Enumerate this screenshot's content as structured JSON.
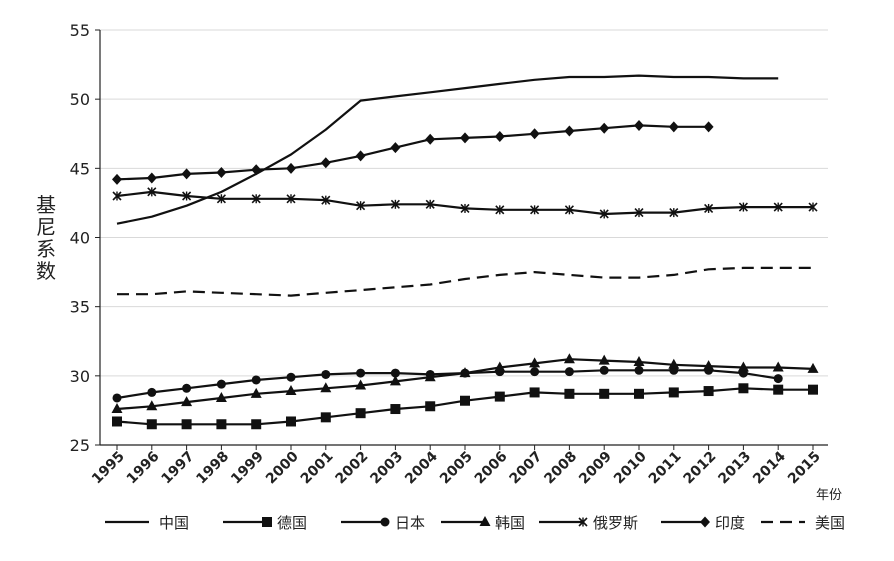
{
  "chart_data": {
    "type": "line",
    "ylabel": "基尼系数",
    "xunit": "年份",
    "ylim": [
      25,
      55
    ],
    "yticks": [
      25,
      30,
      35,
      40,
      45,
      50,
      55
    ],
    "x": [
      "1995",
      "1996",
      "1997",
      "1998",
      "1999",
      "2000",
      "2001",
      "2002",
      "2003",
      "2004",
      "2005",
      "2006",
      "2007",
      "2008",
      "2009",
      "2010",
      "2011",
      "2012",
      "2013",
      "2014",
      "2015"
    ],
    "grid": true,
    "legend_position": "bottom",
    "series": [
      {
        "name": "中国",
        "marker": "none",
        "dash": "solid",
        "color": "#111111",
        "values": [
          41.0,
          41.5,
          42.3,
          43.3,
          44.6,
          46.0,
          47.8,
          49.9,
          50.2,
          50.5,
          50.8,
          51.1,
          51.4,
          51.6,
          51.6,
          51.7,
          51.6,
          51.6,
          51.5,
          51.5,
          null
        ]
      },
      {
        "name": "德国",
        "marker": "square",
        "dash": "solid",
        "color": "#111111",
        "values": [
          26.7,
          26.5,
          26.5,
          26.5,
          26.5,
          26.7,
          27.0,
          27.3,
          27.6,
          27.8,
          28.2,
          28.5,
          28.8,
          28.7,
          28.7,
          28.7,
          28.8,
          28.9,
          29.1,
          29.0,
          29.0
        ]
      },
      {
        "name": "日本",
        "marker": "circle",
        "dash": "solid",
        "color": "#111111",
        "values": [
          28.4,
          28.8,
          29.1,
          29.4,
          29.7,
          29.9,
          30.1,
          30.2,
          30.2,
          30.1,
          30.2,
          30.3,
          30.3,
          30.3,
          30.4,
          30.4,
          30.4,
          30.4,
          30.2,
          29.8,
          null
        ]
      },
      {
        "name": "韩国",
        "marker": "triangle",
        "dash": "solid",
        "color": "#111111",
        "values": [
          27.6,
          27.8,
          28.1,
          28.4,
          28.7,
          28.9,
          29.1,
          29.3,
          29.6,
          29.9,
          30.2,
          30.6,
          30.9,
          31.2,
          31.1,
          31.0,
          30.8,
          30.7,
          30.6,
          30.6,
          30.5
        ]
      },
      {
        "name": "俄罗斯",
        "marker": "star",
        "dash": "solid",
        "color": "#111111",
        "values": [
          43.0,
          43.3,
          43.0,
          42.8,
          42.8,
          42.8,
          42.7,
          42.3,
          42.4,
          42.4,
          42.1,
          42.0,
          42.0,
          42.0,
          41.7,
          41.8,
          41.8,
          42.1,
          42.2,
          42.2,
          42.2
        ]
      },
      {
        "name": "印度",
        "marker": "diamond",
        "dash": "solid",
        "color": "#111111",
        "values": [
          44.2,
          44.3,
          44.6,
          44.7,
          44.9,
          45.0,
          45.4,
          45.9,
          46.5,
          47.1,
          47.2,
          47.3,
          47.5,
          47.7,
          47.9,
          48.1,
          48.0,
          48.0,
          null,
          null,
          null
        ]
      },
      {
        "name": "美国",
        "marker": "none",
        "dash": "dashed",
        "color": "#111111",
        "values": [
          35.9,
          35.9,
          36.1,
          36.0,
          35.9,
          35.8,
          36.0,
          36.2,
          36.4,
          36.6,
          37.0,
          37.3,
          37.5,
          37.3,
          37.1,
          37.1,
          37.3,
          37.7,
          37.8,
          37.8,
          37.8
        ]
      }
    ]
  }
}
